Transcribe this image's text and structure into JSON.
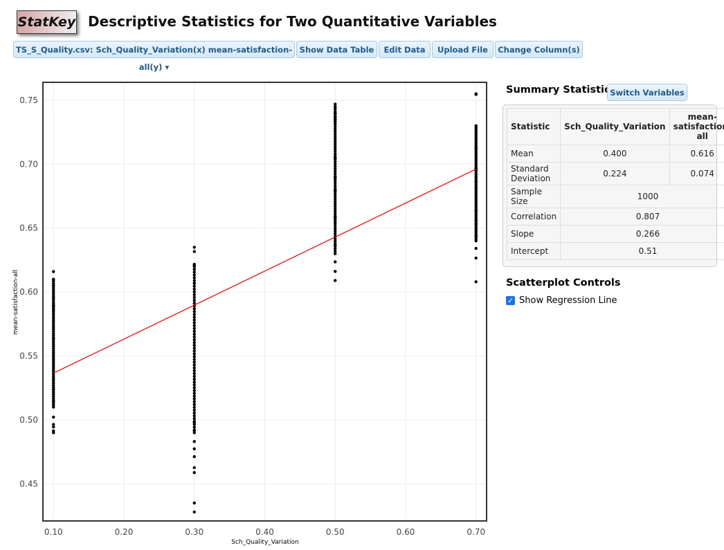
{
  "header": {
    "logo": "StatKey",
    "title": "Descriptive Statistics for Two Quantitative Variables"
  },
  "toolbar": {
    "dataset": "TS_S_Quality.csv: Sch_Quality_Variation(x) mean-satisfaction-all(y)",
    "show_table": "Show Data Table",
    "edit": "Edit Data",
    "upload": "Upload File",
    "change": "Change Column(s)"
  },
  "summary": {
    "title": "Summary Statistics",
    "switch": "Switch Variables",
    "headers": [
      "Statistic",
      "Sch_Quality_Variation",
      "mean-satisfaction-all"
    ],
    "mean": [
      "Mean",
      "0.400",
      "0.616"
    ],
    "sd": [
      "Standard Deviation",
      "0.224",
      "0.074"
    ],
    "n": [
      "Sample Size",
      "1000"
    ],
    "corr": [
      "Correlation",
      "0.807"
    ],
    "slope": [
      "Slope",
      "0.266"
    ],
    "intercept": [
      "Intercept",
      "0.51"
    ]
  },
  "controls": {
    "title": "Scatterplot Controls",
    "regression": "Show Regression Line",
    "regression_checked": true
  },
  "chart_data": {
    "type": "scatter",
    "xlabel": "Sch_Quality_Variation",
    "ylabel": "mean-satisfaction-all",
    "xlim": [
      0.085,
      0.715
    ],
    "ylim": [
      0.421,
      0.764
    ],
    "xticks": [
      "0.10",
      "0.20",
      "0.30",
      "0.40",
      "0.50",
      "0.60",
      "0.70"
    ],
    "yticks": [
      "0.45",
      "0.50",
      "0.55",
      "0.60",
      "0.65",
      "0.70",
      "0.75"
    ],
    "grid": true,
    "n": 1000,
    "groups": [
      {
        "x": 0.1,
        "ymin": 0.49,
        "ymax": 0.616,
        "dense": [
          0.51,
          0.61
        ]
      },
      {
        "x": 0.3,
        "ymin": 0.428,
        "ymax": 0.635,
        "dense": [
          0.49,
          0.62
        ]
      },
      {
        "x": 0.5,
        "ymin": 0.609,
        "ymax": 0.747,
        "dense": [
          0.63,
          0.745
        ]
      },
      {
        "x": 0.7,
        "ymin": 0.608,
        "ymax": 0.755,
        "dense": [
          0.64,
          0.73
        ]
      }
    ],
    "regression": {
      "slope": 0.266,
      "intercept": 0.51,
      "color": "#ff0000"
    }
  }
}
